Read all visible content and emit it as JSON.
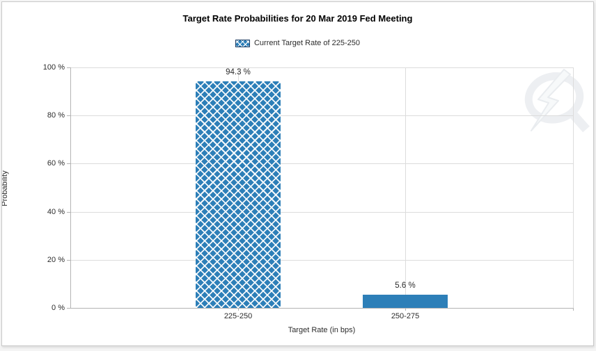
{
  "chart_data": {
    "type": "bar",
    "title": "Target Rate Probabilities for 20 Mar 2019 Fed Meeting",
    "categories": [
      "225-250",
      "250-275"
    ],
    "values": [
      94.3,
      5.6
    ],
    "value_labels": [
      "94.3 %",
      "5.6 %"
    ],
    "bar_patterns": [
      "crosshatch",
      "solid"
    ],
    "xlabel": "Target Rate (in bps)",
    "ylabel": "Probability",
    "ylim": [
      0,
      100
    ],
    "yticks": [
      0,
      20,
      40,
      60,
      80,
      100
    ],
    "ytick_labels": [
      "0 %",
      "20 %",
      "40 %",
      "60 %",
      "80 %",
      "100 %"
    ],
    "legend": [
      {
        "label": "Current Target Rate of 225-250",
        "pattern": "crosshatch"
      }
    ],
    "legend_position": "top-center",
    "grid": true,
    "colors": {
      "bar_fill": "#2d7fb8",
      "pattern_line": "#ffffff",
      "legend_swatch_border": "#17375e",
      "gridline": "#dcdcdc",
      "axis_line": "#b3b3b3",
      "label_text": "#2b2b2b",
      "title_text": "#000000",
      "watermark": "#edeff2"
    }
  },
  "icons": {
    "legend_swatch": "crosshatch-swatch",
    "watermark": "q-lightning-bolt-logo"
  }
}
